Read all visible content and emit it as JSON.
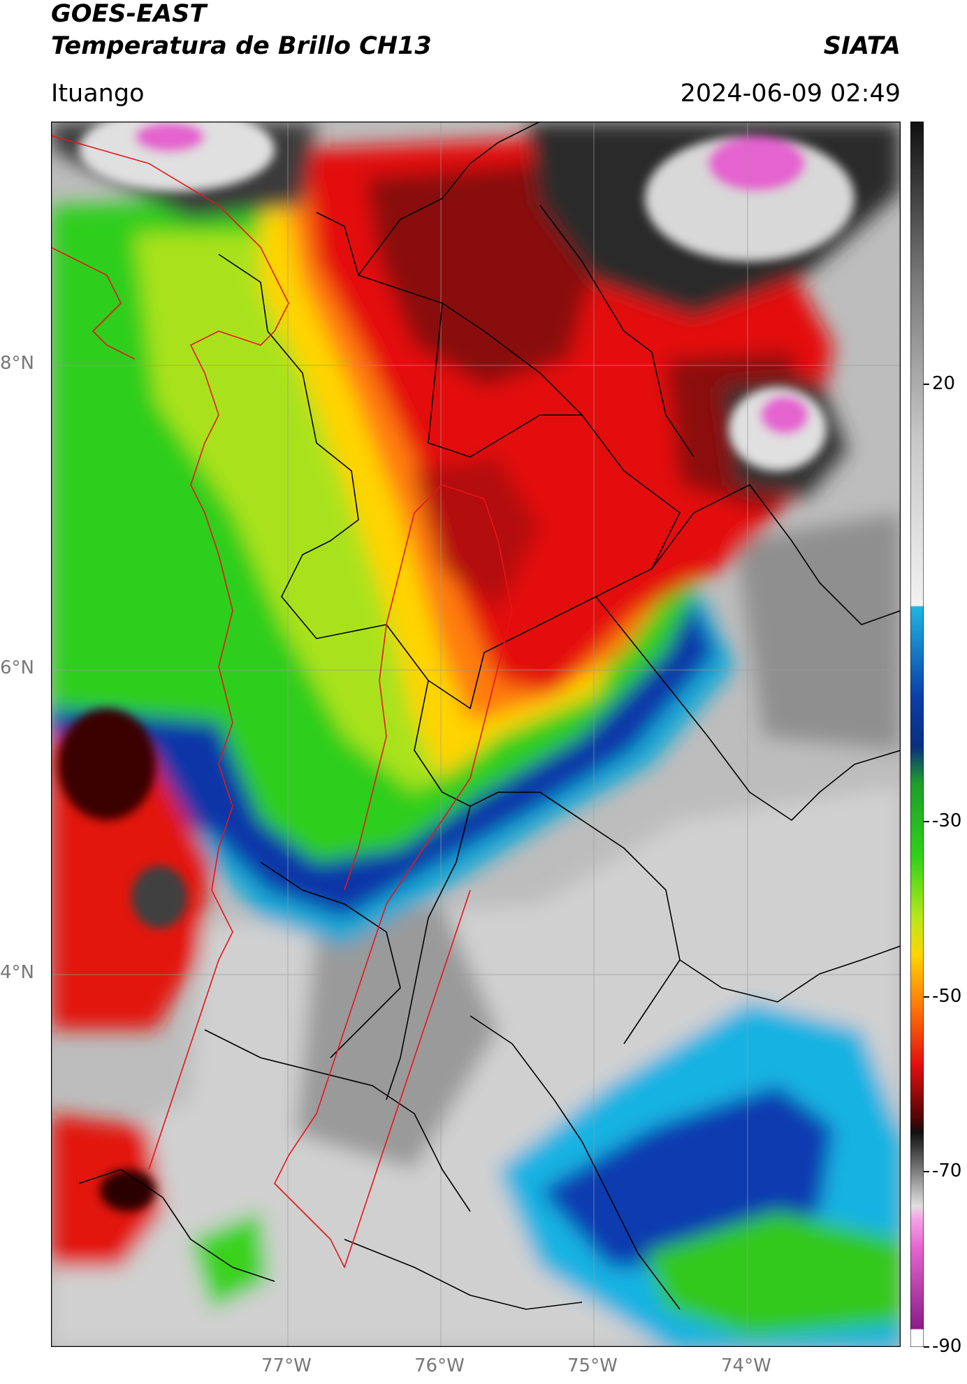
{
  "header": {
    "line1": "GOES-EAST",
    "line2": "Temperatura de Brillo CH13",
    "org": "SIATA",
    "location": "Ituango",
    "datetime": "2024-06-09 02:49"
  },
  "map": {
    "lon_range": [
      -78.55,
      -73.0
    ],
    "lat_range": [
      1.55,
      9.6
    ],
    "lat_ticks": [
      {
        "value": 8,
        "label": "8°N"
      },
      {
        "value": 6,
        "label": "6°N"
      },
      {
        "value": 4,
        "label": "4°N"
      }
    ],
    "lon_ticks": [
      {
        "value": -77,
        "label": "77°W"
      },
      {
        "value": -76,
        "label": "76°W"
      },
      {
        "value": -75,
        "label": "75°W"
      },
      {
        "value": -74,
        "label": "74°W"
      }
    ],
    "grid": true,
    "boundary_colors": {
      "admin": "#000000",
      "region": "#e8141a"
    }
  },
  "colorbar": {
    "range": [
      -90,
      50
    ],
    "ticks": [
      {
        "value": 20,
        "label": "20"
      },
      {
        "value": -30,
        "label": "-30"
      },
      {
        "value": -50,
        "label": "-50"
      },
      {
        "value": -70,
        "label": "-70"
      },
      {
        "value": -90,
        "label": "-90"
      }
    ]
  }
}
